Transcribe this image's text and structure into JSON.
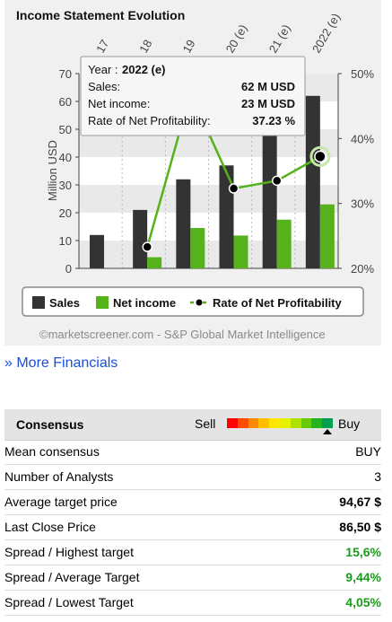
{
  "chart": {
    "title": "Income Statement Evolution",
    "copyright": "©marketscreener.com - S&P Global Market Intelligence",
    "tooltip": {
      "year_label": "Year :",
      "year_value": "2022 (e)",
      "rows": [
        {
          "label": "Sales:",
          "value": "62 M USD"
        },
        {
          "label": "Net income:",
          "value": "23 M USD"
        },
        {
          "label": "Rate of Net Profitability:",
          "value": "37.23 %"
        }
      ]
    },
    "legend": {
      "sales": "Sales",
      "net_income": "Net income",
      "rate": "Rate of Net Profitability"
    },
    "colors": {
      "sales": "#333333",
      "net_income": "#55b21a",
      "rate": "#55b21a"
    }
  },
  "chart_data": {
    "type": "bar",
    "categories": [
      "2017",
      "2018",
      "2019",
      "2020 (e)",
      "2021 (e)",
      "2022 (e)"
    ],
    "category_labels_visible": [
      "17",
      "18",
      "19",
      "20 (e)",
      "21 (e)",
      "2022 (e)"
    ],
    "series": [
      {
        "name": "Sales",
        "type": "bar",
        "axis": "left",
        "values": [
          12,
          21,
          32,
          37,
          50,
          62
        ]
      },
      {
        "name": "Net income",
        "type": "bar",
        "axis": "left",
        "values": [
          0,
          4,
          14.5,
          11.8,
          17.5,
          23
        ]
      },
      {
        "name": "Rate of Net Profitability",
        "type": "line",
        "axis": "right",
        "values": [
          null,
          23.3,
          47,
          32.3,
          33.5,
          37.23
        ]
      }
    ],
    "ylabel": "Million USD",
    "ylim": [
      0,
      70
    ],
    "yticks": [
      0,
      10,
      20,
      30,
      40,
      50,
      60,
      70
    ],
    "y2lim": [
      20,
      50
    ],
    "y2ticks": [
      "20%",
      "30%",
      "40%",
      "50%"
    ],
    "legend_position": "bottom"
  },
  "more_financials": "» More Financials",
  "consensus": {
    "title": "Consensus",
    "sell": "Sell",
    "buy": "Buy",
    "scale_colors": [
      "#ff0000",
      "#ff4d00",
      "#ff8c00",
      "#ffbf00",
      "#ffe600",
      "#e6f000",
      "#aee000",
      "#66cc00",
      "#22b422",
      "#00a050"
    ],
    "rows": [
      {
        "label": "Mean consensus",
        "value": "BUY",
        "style": ""
      },
      {
        "label": "Number of Analysts",
        "value": "3",
        "style": ""
      },
      {
        "label": "Average target price",
        "value": "94,67 $",
        "style": "bold"
      },
      {
        "label": "Last Close Price",
        "value": "86,50 $",
        "style": "bold"
      },
      {
        "label": "Spread / Highest target",
        "value": "15,6%",
        "style": "green"
      },
      {
        "label": "Spread / Average Target",
        "value": "9,44%",
        "style": "green"
      },
      {
        "label": "Spread / Lowest Target",
        "value": "4,05%",
        "style": "green"
      }
    ]
  }
}
